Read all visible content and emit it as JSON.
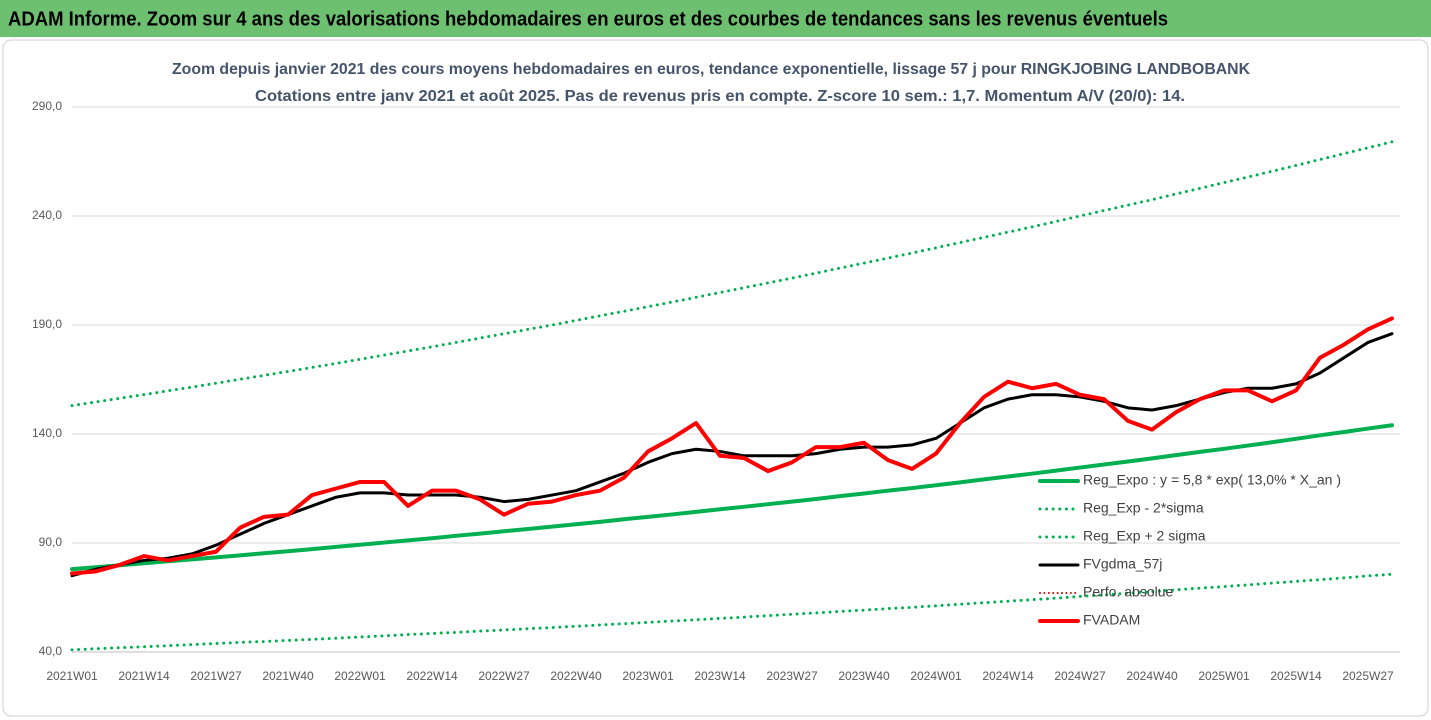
{
  "chart_data": {
    "type": "line",
    "title": "ADAM Informe. Zoom sur 4 ans des valorisations hebdomadaires en euros et des courbes de tendances sans les revenus éventuels",
    "subtitle": [
      "Zoom depuis janvier 2021 des cours moyens hebdomadaires en euros, tendance exponentielle, lissage 57 j pour RINGKJOBING LANDBOBANK",
      "Cotations entre janv 2021 et août 2025. Pas de revenus pris en compte. Z-score 10 sem.: 1,7. Momentum A/V (20/0): 14."
    ],
    "categories": [
      "2021W01",
      null,
      null,
      "2021W14",
      null,
      null,
      "2021W27",
      null,
      null,
      "2021W40",
      null,
      null,
      "2022W01",
      null,
      null,
      "2022W14",
      null,
      null,
      "2022W27",
      null,
      null,
      "2022W40",
      null,
      null,
      "2023W01",
      null,
      null,
      "2023W14",
      null,
      null,
      "2023W27",
      null,
      null,
      "2023W40",
      null,
      null,
      "2024W01",
      null,
      null,
      "2024W14",
      null,
      null,
      "2024W27",
      null,
      null,
      "2024W40",
      null,
      null,
      "2025W01",
      null,
      null,
      "2025W14",
      null,
      null,
      "2025W27",
      null
    ],
    "ylim": [
      40,
      290
    ],
    "yticks": [
      {
        "value": 40,
        "label": "40,0"
      },
      {
        "value": 90,
        "label": "90,0"
      },
      {
        "value": 140,
        "label": "140,0"
      },
      {
        "value": 190,
        "label": "190,0"
      },
      {
        "value": 240,
        "label": "240,0"
      },
      {
        "value": 290,
        "label": "290,0"
      }
    ],
    "grid": true,
    "legend": "right",
    "series": [
      {
        "name": "Reg_Expo : y = 5,8 * exp( 13,0% *  X_an )",
        "color": "#00b050",
        "line_style": "solid",
        "width": 4,
        "values": [
          78.0,
          78.9,
          79.8,
          80.7,
          81.6,
          82.5,
          83.4,
          84.3,
          85.3,
          86.2,
          87.2,
          88.2,
          89.2,
          90.2,
          91.2,
          92.2,
          93.3,
          94.3,
          95.4,
          96.4,
          97.5,
          98.6,
          99.7,
          100.9,
          102.0,
          103.1,
          104.3,
          105.5,
          106.6,
          107.8,
          109.0,
          110.2,
          111.5,
          112.7,
          114.0,
          115.2,
          116.5,
          117.8,
          119.2,
          120.5,
          121.8,
          123.2,
          124.6,
          126.0,
          127.4,
          128.8,
          130.3,
          131.8,
          133.2,
          134.7,
          136.2,
          137.8,
          139.4,
          140.9,
          142.5,
          144.0
        ]
      },
      {
        "name": "Reg_Exp - 2*sigma",
        "color": "#00b050",
        "line_style": "dotted",
        "width": 3,
        "values": [
          41.0,
          41.5,
          42.0,
          42.4,
          42.9,
          43.4,
          43.9,
          44.4,
          44.8,
          45.3,
          45.8,
          46.3,
          46.9,
          47.4,
          48.0,
          48.5,
          49.0,
          49.6,
          50.1,
          50.7,
          51.2,
          51.8,
          52.4,
          53.0,
          53.6,
          54.2,
          54.8,
          55.4,
          56.0,
          56.7,
          57.3,
          57.9,
          58.6,
          59.2,
          59.9,
          60.5,
          61.2,
          61.9,
          62.6,
          63.3,
          64.0,
          64.7,
          65.5,
          66.2,
          67.0,
          67.7,
          68.5,
          69.3,
          70.0,
          70.8,
          71.6,
          72.4,
          73.2,
          74.0,
          74.9,
          75.7
        ]
      },
      {
        "name": "Reg_Exp + 2 sigma",
        "color": "#00b050",
        "line_style": "dotted",
        "width": 3,
        "values": [
          153.0,
          154.7,
          156.4,
          158.1,
          159.8,
          161.5,
          163.3,
          165.1,
          166.9,
          168.7,
          170.5,
          172.4,
          174.3,
          176.2,
          178.1,
          180.0,
          182.0,
          184.0,
          186.0,
          188.0,
          190.0,
          192.1,
          194.2,
          196.3,
          198.4,
          200.5,
          202.7,
          204.9,
          207.1,
          209.3,
          211.5,
          213.8,
          216.1,
          218.4,
          220.7,
          223.0,
          225.4,
          227.8,
          230.2,
          232.6,
          235.0,
          237.5,
          240.0,
          242.5,
          245.0,
          247.5,
          250.1,
          252.7,
          255.3,
          257.9,
          260.5,
          263.2,
          265.9,
          268.6,
          271.3,
          274.0
        ]
      },
      {
        "name": "FVgdma_57j",
        "color": "#000000",
        "line_style": "solid",
        "width": 3,
        "values": [
          75,
          78,
          80,
          82,
          83,
          85,
          89,
          94,
          99,
          103,
          107,
          111,
          113,
          113,
          112,
          112,
          112,
          111,
          109,
          110,
          112,
          114,
          118,
          122,
          127,
          131,
          133,
          132,
          130,
          130,
          130,
          131,
          133,
          134,
          134,
          135,
          138,
          145,
          152,
          156,
          158,
          158,
          157,
          155,
          152,
          151,
          153,
          156,
          159,
          161,
          161,
          163,
          168,
          175,
          182,
          186
        ]
      },
      {
        "name": "Perfo. absolue",
        "color": "#c00000",
        "line_style": "dotted",
        "width": 2,
        "values": [
          null,
          null,
          null,
          null,
          null,
          null,
          null,
          null,
          null,
          null,
          null,
          null,
          null,
          null,
          null,
          null,
          null,
          null,
          null,
          null,
          null,
          null,
          null,
          null,
          null,
          null,
          null,
          null,
          null,
          null,
          null,
          null,
          null,
          null,
          null,
          null,
          null,
          null,
          null,
          null,
          null,
          null,
          null,
          null,
          null,
          null,
          null,
          null,
          null,
          null,
          null,
          null,
          null,
          null,
          null,
          null
        ]
      },
      {
        "name": "FVADAM",
        "color": "#ff0000",
        "line_style": "solid",
        "width": 4,
        "values": [
          76,
          77,
          80,
          84,
          82,
          84,
          86,
          97,
          102,
          103,
          112,
          115,
          118,
          118,
          107,
          114,
          114,
          110,
          103,
          108,
          109,
          112,
          114,
          120,
          132,
          138,
          145,
          130,
          129,
          123,
          127,
          134,
          134,
          136,
          128,
          124,
          131,
          145,
          157,
          164,
          161,
          163,
          158,
          156,
          146,
          142,
          150,
          156,
          160,
          160,
          155,
          160,
          175,
          181,
          188,
          193
        ]
      }
    ]
  }
}
